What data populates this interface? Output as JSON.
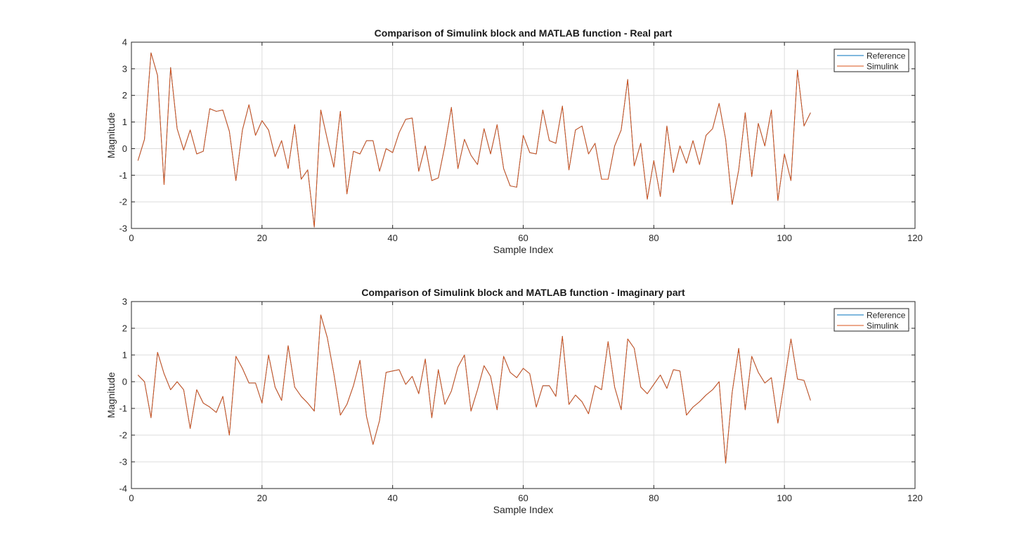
{
  "chart_data": [
    {
      "type": "line",
      "title": "Comparison of Simulink block and MATLAB function - Real part",
      "xlabel": "Sample Index",
      "ylabel": "Magnitude",
      "xlim": [
        0,
        120
      ],
      "ylim": [
        -3,
        4
      ],
      "xticks": [
        0,
        20,
        40,
        60,
        80,
        100,
        120
      ],
      "yticks": [
        -3,
        -2,
        -1,
        0,
        1,
        2,
        3,
        4
      ],
      "grid": true,
      "legend_position": "top-right",
      "series": [
        {
          "name": "Reference",
          "color": "#0072BD",
          "x": [
            1,
            2,
            3,
            4,
            5,
            6,
            7,
            8,
            9,
            10,
            11,
            12,
            13,
            14,
            15,
            16,
            17,
            18,
            19,
            20,
            21,
            22,
            23,
            24,
            25,
            26,
            27,
            28,
            29,
            30,
            31,
            32,
            33,
            34,
            35,
            36,
            37,
            38,
            39,
            40,
            41,
            42,
            43,
            44,
            45,
            46,
            47,
            48,
            49,
            50,
            51,
            52,
            53,
            54,
            55,
            56,
            57,
            58,
            59,
            60,
            61,
            62,
            63,
            64,
            65,
            66,
            67,
            68,
            69,
            70,
            71,
            72,
            73,
            74,
            75,
            76,
            77,
            78,
            79,
            80,
            81,
            82,
            83,
            84,
            85,
            86,
            87,
            88,
            89,
            90,
            91,
            92,
            93,
            94,
            95,
            96,
            97,
            98,
            99,
            100,
            101,
            102,
            103,
            104
          ],
          "y": [
            -0.45,
            0.35,
            3.6,
            2.75,
            -1.35,
            3.05,
            0.75,
            -0.05,
            0.7,
            -0.2,
            -0.1,
            1.5,
            1.4,
            1.45,
            0.65,
            -1.2,
            0.7,
            1.65,
            0.5,
            1.05,
            0.7,
            -0.3,
            0.3,
            -0.75,
            0.9,
            -1.15,
            -0.8,
            -2.95,
            1.45,
            0.35,
            -0.7,
            1.4,
            -1.7,
            -0.1,
            -0.2,
            0.3,
            0.3,
            -0.85,
            0.0,
            -0.15,
            0.6,
            1.1,
            1.15,
            -0.85,
            0.1,
            -1.2,
            -1.1,
            0.1,
            1.55,
            -0.75,
            0.35,
            -0.25,
            -0.6,
            0.75,
            -0.2,
            0.9,
            -0.75,
            -1.4,
            -1.45,
            0.5,
            -0.15,
            -0.2,
            1.45,
            0.3,
            0.2,
            1.6,
            -0.8,
            0.7,
            0.85,
            -0.2,
            0.2,
            -1.15,
            -1.15,
            0.1,
            0.7,
            2.6,
            -0.65,
            0.2,
            -1.9,
            -0.45,
            -1.8,
            0.85,
            -0.9,
            0.1,
            -0.55,
            0.3,
            -0.6,
            0.5,
            0.75,
            1.7,
            0.35,
            -2.1,
            -0.8,
            1.35,
            -1.05,
            0.95,
            0.1,
            1.45,
            -1.95,
            -0.2,
            -1.2,
            2.95,
            0.85,
            1.35
          ]
        },
        {
          "name": "Simulink",
          "color": "#D95319",
          "x": [
            1,
            2,
            3,
            4,
            5,
            6,
            7,
            8,
            9,
            10,
            11,
            12,
            13,
            14,
            15,
            16,
            17,
            18,
            19,
            20,
            21,
            22,
            23,
            24,
            25,
            26,
            27,
            28,
            29,
            30,
            31,
            32,
            33,
            34,
            35,
            36,
            37,
            38,
            39,
            40,
            41,
            42,
            43,
            44,
            45,
            46,
            47,
            48,
            49,
            50,
            51,
            52,
            53,
            54,
            55,
            56,
            57,
            58,
            59,
            60,
            61,
            62,
            63,
            64,
            65,
            66,
            67,
            68,
            69,
            70,
            71,
            72,
            73,
            74,
            75,
            76,
            77,
            78,
            79,
            80,
            81,
            82,
            83,
            84,
            85,
            86,
            87,
            88,
            89,
            90,
            91,
            92,
            93,
            94,
            95,
            96,
            97,
            98,
            99,
            100,
            101,
            102,
            103,
            104
          ],
          "y": [
            -0.45,
            0.35,
            3.6,
            2.75,
            -1.35,
            3.05,
            0.75,
            -0.05,
            0.7,
            -0.2,
            -0.1,
            1.5,
            1.4,
            1.45,
            0.65,
            -1.2,
            0.7,
            1.65,
            0.5,
            1.05,
            0.7,
            -0.3,
            0.3,
            -0.75,
            0.9,
            -1.15,
            -0.8,
            -2.95,
            1.45,
            0.35,
            -0.7,
            1.4,
            -1.7,
            -0.1,
            -0.2,
            0.3,
            0.3,
            -0.85,
            0.0,
            -0.15,
            0.6,
            1.1,
            1.15,
            -0.85,
            0.1,
            -1.2,
            -1.1,
            0.1,
            1.55,
            -0.75,
            0.35,
            -0.25,
            -0.6,
            0.75,
            -0.2,
            0.9,
            -0.75,
            -1.4,
            -1.45,
            0.5,
            -0.15,
            -0.2,
            1.45,
            0.3,
            0.2,
            1.6,
            -0.8,
            0.7,
            0.85,
            -0.2,
            0.2,
            -1.15,
            -1.15,
            0.1,
            0.7,
            2.6,
            -0.65,
            0.2,
            -1.9,
            -0.45,
            -1.8,
            0.85,
            -0.9,
            0.1,
            -0.55,
            0.3,
            -0.6,
            0.5,
            0.75,
            1.7,
            0.35,
            -2.1,
            -0.8,
            1.35,
            -1.05,
            0.95,
            0.1,
            1.45,
            -1.95,
            -0.2,
            -1.2,
            2.95,
            0.85,
            1.35
          ]
        }
      ]
    },
    {
      "type": "line",
      "title": "Comparison of Simulink block and MATLAB function - Imaginary part",
      "xlabel": "Sample Index",
      "ylabel": "Magnitude",
      "xlim": [
        0,
        120
      ],
      "ylim": [
        -4,
        3
      ],
      "xticks": [
        0,
        20,
        40,
        60,
        80,
        100,
        120
      ],
      "yticks": [
        -4,
        -3,
        -2,
        -1,
        0,
        1,
        2,
        3
      ],
      "grid": true,
      "legend_position": "top-right",
      "series": [
        {
          "name": "Reference",
          "color": "#0072BD",
          "x": [
            1,
            2,
            3,
            4,
            5,
            6,
            7,
            8,
            9,
            10,
            11,
            12,
            13,
            14,
            15,
            16,
            17,
            18,
            19,
            20,
            21,
            22,
            23,
            24,
            25,
            26,
            27,
            28,
            29,
            30,
            31,
            32,
            33,
            34,
            35,
            36,
            37,
            38,
            39,
            40,
            41,
            42,
            43,
            44,
            45,
            46,
            47,
            48,
            49,
            50,
            51,
            52,
            53,
            54,
            55,
            56,
            57,
            58,
            59,
            60,
            61,
            62,
            63,
            64,
            65,
            66,
            67,
            68,
            69,
            70,
            71,
            72,
            73,
            74,
            75,
            76,
            77,
            78,
            79,
            80,
            81,
            82,
            83,
            84,
            85,
            86,
            87,
            88,
            89,
            90,
            91,
            92,
            93,
            94,
            95,
            96,
            97,
            98,
            99,
            100,
            101,
            102,
            103,
            104
          ],
          "y": [
            0.25,
            0.0,
            -1.35,
            1.1,
            0.3,
            -0.3,
            0.0,
            -0.3,
            -1.75,
            -0.3,
            -0.8,
            -0.95,
            -1.15,
            -0.55,
            -2.0,
            0.95,
            0.5,
            -0.05,
            -0.05,
            -0.8,
            1.0,
            -0.2,
            -0.7,
            1.35,
            -0.2,
            -0.55,
            -0.8,
            -1.1,
            2.5,
            1.65,
            0.3,
            -1.25,
            -0.85,
            -0.15,
            0.8,
            -1.3,
            -2.35,
            -1.45,
            0.35,
            0.4,
            0.45,
            -0.1,
            0.2,
            -0.45,
            0.85,
            -1.35,
            0.45,
            -0.85,
            -0.35,
            0.55,
            1.0,
            -1.1,
            -0.3,
            0.6,
            0.2,
            -1.05,
            0.95,
            0.35,
            0.15,
            0.5,
            0.3,
            -0.95,
            -0.15,
            -0.15,
            -0.55,
            1.7,
            -0.85,
            -0.5,
            -0.75,
            -1.2,
            -0.15,
            -0.3,
            1.5,
            -0.2,
            -1.05,
            1.6,
            1.25,
            -0.2,
            -0.45,
            -0.1,
            0.25,
            -0.25,
            0.45,
            0.4,
            -1.25,
            -0.95,
            -0.75,
            -0.5,
            -0.3,
            0.0,
            -3.05,
            -0.4,
            1.25,
            -1.05,
            0.95,
            0.35,
            -0.05,
            0.15,
            -1.55,
            0.0,
            1.6,
            0.1,
            0.05,
            -0.7
          ]
        },
        {
          "name": "Simulink",
          "color": "#D95319",
          "x": [
            1,
            2,
            3,
            4,
            5,
            6,
            7,
            8,
            9,
            10,
            11,
            12,
            13,
            14,
            15,
            16,
            17,
            18,
            19,
            20,
            21,
            22,
            23,
            24,
            25,
            26,
            27,
            28,
            29,
            30,
            31,
            32,
            33,
            34,
            35,
            36,
            37,
            38,
            39,
            40,
            41,
            42,
            43,
            44,
            45,
            46,
            47,
            48,
            49,
            50,
            51,
            52,
            53,
            54,
            55,
            56,
            57,
            58,
            59,
            60,
            61,
            62,
            63,
            64,
            65,
            66,
            67,
            68,
            69,
            70,
            71,
            72,
            73,
            74,
            75,
            76,
            77,
            78,
            79,
            80,
            81,
            82,
            83,
            84,
            85,
            86,
            87,
            88,
            89,
            90,
            91,
            92,
            93,
            94,
            95,
            96,
            97,
            98,
            99,
            100,
            101,
            102,
            103,
            104
          ],
          "y": [
            0.25,
            0.0,
            -1.35,
            1.1,
            0.3,
            -0.3,
            0.0,
            -0.3,
            -1.75,
            -0.3,
            -0.8,
            -0.95,
            -1.15,
            -0.55,
            -2.0,
            0.95,
            0.5,
            -0.05,
            -0.05,
            -0.8,
            1.0,
            -0.2,
            -0.7,
            1.35,
            -0.2,
            -0.55,
            -0.8,
            -1.1,
            2.5,
            1.65,
            0.3,
            -1.25,
            -0.85,
            -0.15,
            0.8,
            -1.3,
            -2.35,
            -1.45,
            0.35,
            0.4,
            0.45,
            -0.1,
            0.2,
            -0.45,
            0.85,
            -1.35,
            0.45,
            -0.85,
            -0.35,
            0.55,
            1.0,
            -1.1,
            -0.3,
            0.6,
            0.2,
            -1.05,
            0.95,
            0.35,
            0.15,
            0.5,
            0.3,
            -0.95,
            -0.15,
            -0.15,
            -0.55,
            1.7,
            -0.85,
            -0.5,
            -0.75,
            -1.2,
            -0.15,
            -0.3,
            1.5,
            -0.2,
            -1.05,
            1.6,
            1.25,
            -0.2,
            -0.45,
            -0.1,
            0.25,
            -0.25,
            0.45,
            0.4,
            -1.25,
            -0.95,
            -0.75,
            -0.5,
            -0.3,
            0.0,
            -3.05,
            -0.4,
            1.25,
            -1.05,
            0.95,
            0.35,
            -0.05,
            0.15,
            -1.55,
            0.0,
            1.6,
            0.1,
            0.05,
            -0.7
          ]
        }
      ]
    }
  ]
}
